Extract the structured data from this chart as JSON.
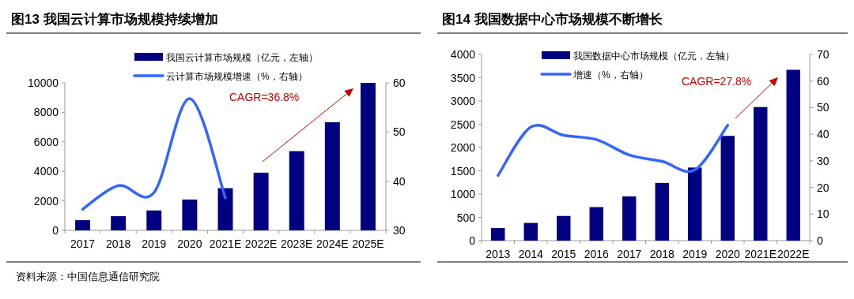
{
  "chart_data": [
    {
      "type": "bar",
      "title": "图13 我国云计算市场规模持续增加",
      "categories": [
        "2017",
        "2018",
        "2019",
        "2020",
        "2021E",
        "2022E",
        "2023E",
        "2024E",
        "2025E"
      ],
      "series": [
        {
          "name": "我国云计算市场规模（亿元，左轴）",
          "type": "bar",
          "color": "#000080",
          "values": [
            690,
            960,
            1350,
            2090,
            2860,
            3910,
            5370,
            7330,
            10000
          ]
        },
        {
          "name": "云计算市场规模增速（%，右轴）",
          "type": "line",
          "axis": "y2",
          "color": "#3366ff",
          "values": [
            34.3,
            39.1,
            37.7,
            56.8,
            36.6,
            null,
            null,
            null,
            null
          ]
        }
      ],
      "ylim": [
        0,
        10000
      ],
      "yticks": [
        0,
        2000,
        4000,
        6000,
        8000,
        10000
      ],
      "y2lim": [
        30,
        60
      ],
      "y2ticks": [
        30,
        40,
        50,
        60
      ],
      "legend": "top",
      "annotations": [
        "CAGR=36.8%",
        "资料来源：中国信息通信研究院"
      ]
    },
    {
      "type": "bar",
      "title": "图14 我国数据中心市场规模不断增长",
      "categories": [
        "2013",
        "2014",
        "2015",
        "2016",
        "2017",
        "2018",
        "2019",
        "2020",
        "2021E",
        "2022E"
      ],
      "series": [
        {
          "name": "我国数据中心市场规模（亿元，左轴）",
          "type": "bar",
          "color": "#000080",
          "values": [
            270,
            380,
            530,
            720,
            950,
            1240,
            1570,
            2250,
            2870,
            3670
          ]
        },
        {
          "name": "增速（%，右轴）",
          "type": "line",
          "axis": "y2",
          "color": "#3366ff",
          "values": [
            24.5,
            42.7,
            39.6,
            38.0,
            32.2,
            29.8,
            26.6,
            43.4,
            null,
            null
          ]
        }
      ],
      "ylim": [
        0,
        4000
      ],
      "yticks": [
        0,
        500,
        1000,
        1500,
        2000,
        2500,
        3000,
        3500,
        4000
      ],
      "y2lim": [
        0,
        70
      ],
      "y2ticks": [
        0,
        10,
        20,
        30,
        40,
        50,
        60,
        70
      ],
      "legend": "top",
      "annotations": [
        "CAGR=27.8%"
      ]
    }
  ]
}
